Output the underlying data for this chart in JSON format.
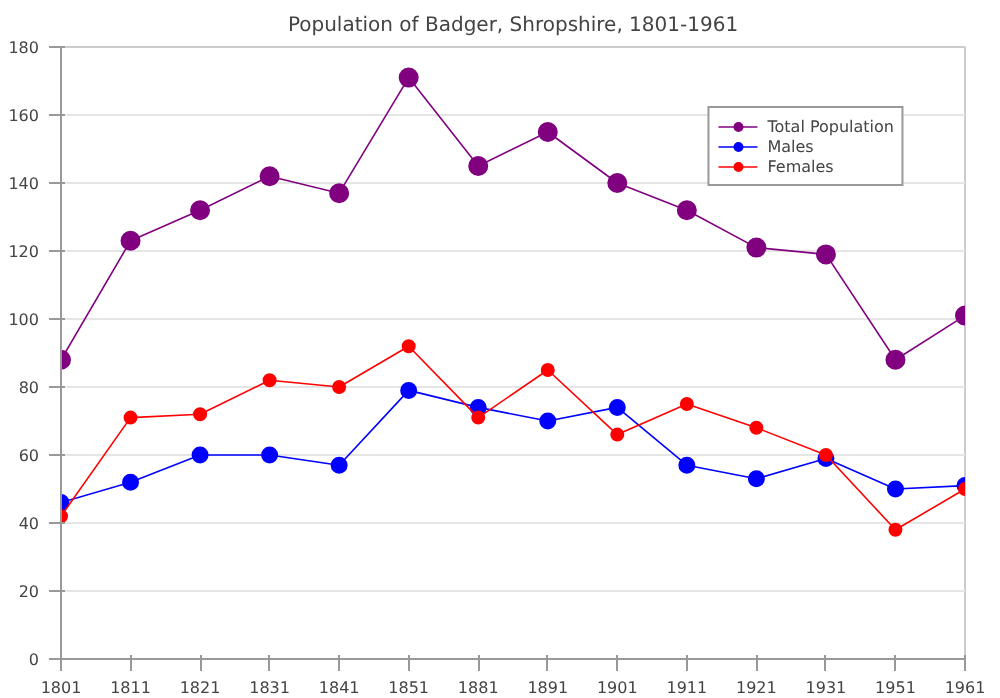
{
  "chart_data": {
    "type": "line",
    "title": "Population of Badger, Shropshire, 1801-1961",
    "categories": [
      "1801",
      "1811",
      "1821",
      "1831",
      "1841",
      "1851",
      "1881",
      "1891",
      "1901",
      "1911",
      "1921",
      "1931",
      "1951",
      "1961"
    ],
    "series": [
      {
        "name": "Total Population",
        "color": "#800080",
        "values": [
          88,
          123,
          132,
          142,
          137,
          171,
          145,
          155,
          140,
          132,
          121,
          119,
          88,
          101
        ]
      },
      {
        "name": "Males",
        "color": "#0000ff",
        "values": [
          46,
          52,
          60,
          60,
          57,
          79,
          74,
          70,
          74,
          57,
          53,
          59,
          50,
          51
        ]
      },
      {
        "name": "Females",
        "color": "#ff0000",
        "values": [
          42,
          71,
          72,
          82,
          80,
          92,
          71,
          85,
          66,
          75,
          68,
          60,
          38,
          50
        ]
      }
    ],
    "ylim": [
      0,
      180
    ],
    "yticks": [
      0,
      20,
      40,
      60,
      80,
      100,
      120,
      140,
      160,
      180
    ],
    "grid": "y",
    "legend": "top right",
    "marker": "circle",
    "line_style": "solid"
  }
}
